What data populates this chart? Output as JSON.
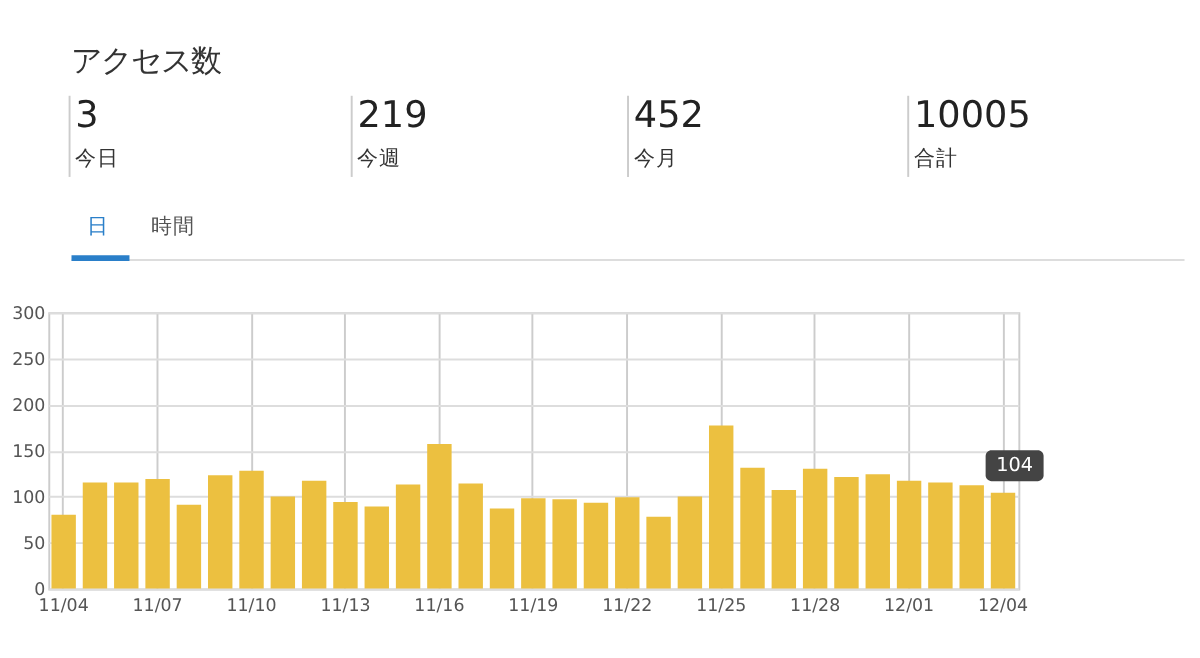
{
  "chart_data": [
    {
      "type": "other",
      "title": "アクセス数",
      "annotations": [
        "3",
        "今日",
        "219",
        "今週",
        "452",
        "今月",
        "10005",
        "合計",
        "日",
        "時間"
      ]
    },
    {
      "type": "bar",
      "categories": [
        "11/04",
        null,
        null,
        "11/07",
        null,
        null,
        "11/10",
        null,
        null,
        "11/13",
        null,
        null,
        "11/16",
        null,
        null,
        "11/19",
        null,
        null,
        "11/22",
        null,
        null,
        "11/25",
        null,
        null,
        "11/28",
        null,
        null,
        "12/01",
        null,
        null,
        "12/04"
      ],
      "series": [
        {
          "color": "#ecc040",
          "values": [
            80,
            115,
            115,
            119,
            91,
            123,
            128,
            100,
            117,
            94,
            89,
            113,
            157,
            114,
            87,
            98,
            97,
            93,
            99,
            78,
            100,
            177,
            131,
            107,
            130,
            121,
            124,
            117,
            115,
            112,
            104
          ],
          "value_labels": [
            null,
            null,
            null,
            null,
            null,
            null,
            null,
            null,
            null,
            null,
            null,
            null,
            null,
            null,
            null,
            null,
            null,
            null,
            null,
            null,
            null,
            null,
            null,
            null,
            null,
            null,
            null,
            null,
            null,
            null,
            "104"
          ]
        }
      ],
      "ylim": [
        0,
        300
      ],
      "yticks": [
        0,
        50,
        100,
        150,
        200,
        250,
        300
      ],
      "grid": true
    }
  ]
}
